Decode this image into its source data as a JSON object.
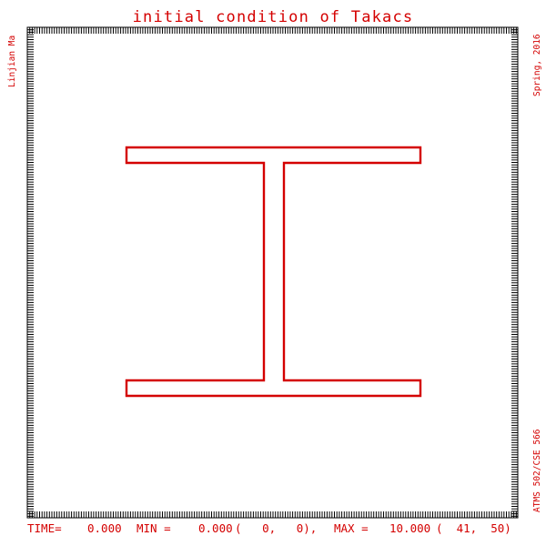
{
  "title": "initial condition of Takacs",
  "left_label": "Linjian Ma",
  "right_top_label": "Spring, 2016",
  "right_bottom_label": "ATMS 502/CSE 566",
  "status": {
    "time_label": "TIME=",
    "time_value": "0.000",
    "min_label": "MIN =",
    "min_value": "0.000",
    "min_loc": "(   0,   0),",
    "max_label": "MAX =",
    "max_value": "10.000",
    "max_loc": "(  41,  50)"
  },
  "colors": {
    "accent": "#d40000",
    "frame": "#000000",
    "background": "#ffffff"
  }
}
